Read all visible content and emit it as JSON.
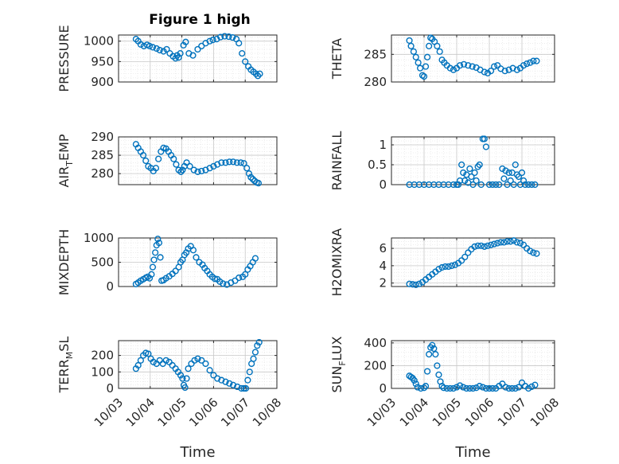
{
  "figure": {
    "title": "Figure 1 high",
    "marker_color": "#0072BD",
    "grid_color": "#c8c8c8",
    "axis_color": "#262626"
  },
  "chart_data": [
    {
      "id": "pressure",
      "type": "scatter",
      "marker": "circle",
      "title": "Figure 1 high",
      "ylabel": {
        "main": "PRESSURE",
        "sub": ""
      },
      "xlabel": "",
      "xlim": [
        0,
        5
      ],
      "xticks": [
        0,
        1,
        2,
        3,
        4,
        5
      ],
      "xticklabels": [],
      "ylim": [
        900,
        1015
      ],
      "yticks": [
        900,
        950,
        1000
      ],
      "yticklabels": [
        "900",
        "950",
        "1000"
      ],
      "grid": true,
      "x": [
        0.55,
        0.62,
        0.7,
        0.8,
        0.9,
        0.98,
        1.08,
        1.2,
        1.3,
        1.42,
        1.52,
        1.62,
        1.72,
        1.8,
        1.85,
        1.9,
        1.95,
        2.05,
        2.12,
        2.22,
        2.35,
        2.5,
        2.62,
        2.75,
        2.88,
        2.98,
        3.1,
        3.22,
        3.35,
        3.48,
        3.6,
        3.72,
        3.8,
        3.9,
        4.0,
        4.1,
        4.18,
        4.26,
        4.34,
        4.4,
        4.46
      ],
      "y": [
        1005,
        1000,
        992,
        988,
        991,
        988,
        985,
        982,
        978,
        975,
        980,
        970,
        963,
        958,
        965,
        960,
        970,
        990,
        998,
        970,
        965,
        980,
        988,
        995,
        1000,
        1003,
        1005,
        1010,
        1012,
        1011,
        1009,
        1005,
        995,
        970,
        950,
        938,
        930,
        925,
        920,
        915,
        920
      ]
    },
    {
      "id": "theta",
      "type": "scatter",
      "marker": "circle",
      "ylabel": {
        "main": "THETA",
        "sub": ""
      },
      "xlabel": "",
      "xlim": [
        0,
        5
      ],
      "xticks": [
        0,
        1,
        2,
        3,
        4,
        5
      ],
      "xticklabels": [],
      "ylim": [
        280,
        288.5
      ],
      "yticks": [
        280,
        285
      ],
      "yticklabels": [
        "280",
        "285"
      ],
      "grid": true,
      "x": [
        0.55,
        0.6,
        0.68,
        0.75,
        0.82,
        0.88,
        0.95,
        1.0,
        1.05,
        1.1,
        1.15,
        1.2,
        1.25,
        1.32,
        1.4,
        1.48,
        1.55,
        1.62,
        1.7,
        1.8,
        1.9,
        2.0,
        2.1,
        2.22,
        2.35,
        2.48,
        2.6,
        2.72,
        2.85,
        2.95,
        3.05,
        3.15,
        3.25,
        3.35,
        3.48,
        3.6,
        3.72,
        3.85,
        3.95,
        4.05,
        4.15,
        4.25,
        4.35,
        4.45
      ],
      "y": [
        287.5,
        286.5,
        285.5,
        284.5,
        283.5,
        282.5,
        281.2,
        281,
        282.8,
        284.5,
        286.5,
        288,
        287.8,
        287.3,
        286.5,
        285.5,
        284,
        283.5,
        283,
        282.5,
        282.2,
        282.5,
        283,
        283.2,
        283,
        282.8,
        282.6,
        282.2,
        281.8,
        281.6,
        282,
        282.8,
        283,
        282.4,
        282,
        282.2,
        282.5,
        282.2,
        282.5,
        283,
        283.3,
        283.5,
        283.8,
        283.8
      ]
    },
    {
      "id": "air_temp",
      "type": "scatter",
      "marker": "circle",
      "ylabel": {
        "main": "AIR",
        "sub": "T",
        "tail": "EMP"
      },
      "xlabel": "",
      "xlim": [
        0,
        5
      ],
      "xticks": [
        0,
        1,
        2,
        3,
        4,
        5
      ],
      "xticklabels": [],
      "ylim": [
        277,
        290
      ],
      "yticks": [
        280,
        285,
        290
      ],
      "yticklabels": [
        "280",
        "285",
        "290"
      ],
      "grid": true,
      "x": [
        0.55,
        0.62,
        0.7,
        0.78,
        0.86,
        0.94,
        1.02,
        1.1,
        1.18,
        1.26,
        1.34,
        1.42,
        1.5,
        1.58,
        1.66,
        1.74,
        1.82,
        1.9,
        1.97,
        2.02,
        2.08,
        2.15,
        2.25,
        2.38,
        2.5,
        2.62,
        2.75,
        2.88,
        3.0,
        3.12,
        3.25,
        3.38,
        3.5,
        3.62,
        3.74,
        3.86,
        3.96,
        4.05,
        4.12,
        4.18,
        4.24,
        4.3,
        4.36,
        4.42
      ],
      "y": [
        288,
        287,
        286,
        285,
        283.5,
        282,
        281.5,
        280.7,
        281.5,
        284,
        286,
        287,
        286.8,
        286,
        285,
        284,
        282.5,
        281,
        280.5,
        281,
        282,
        283,
        282,
        281,
        280.5,
        280.7,
        281,
        281.5,
        282,
        282.5,
        283,
        283,
        283.2,
        283.2,
        283,
        283,
        282.8,
        281.5,
        280,
        279,
        278.5,
        278,
        277.6,
        277.4
      ]
    },
    {
      "id": "rainfall",
      "type": "scatter",
      "marker": "circle",
      "ylabel": {
        "main": "RAINFALL",
        "sub": ""
      },
      "xlabel": "",
      "xlim": [
        0,
        5
      ],
      "xticks": [
        0,
        1,
        2,
        3,
        4,
        5
      ],
      "xticklabels": [],
      "ylim": [
        0,
        1.2
      ],
      "yticks": [
        0,
        0.5,
        1
      ],
      "yticklabels": [
        "0",
        "0.5",
        "1"
      ],
      "grid": true,
      "x": [
        0.55,
        0.7,
        0.85,
        1.0,
        1.15,
        1.3,
        1.45,
        1.6,
        1.75,
        1.9,
        2.0,
        2.05,
        2.1,
        2.15,
        2.2,
        2.25,
        2.3,
        2.35,
        2.4,
        2.45,
        2.5,
        2.55,
        2.6,
        2.65,
        2.7,
        2.75,
        2.8,
        2.85,
        2.9,
        3.0,
        3.1,
        3.2,
        3.3,
        3.4,
        3.45,
        3.5,
        3.55,
        3.6,
        3.65,
        3.7,
        3.75,
        3.8,
        3.85,
        3.9,
        3.95,
        4.0,
        4.05,
        4.1,
        4.2,
        4.3,
        4.4
      ],
      "y": [
        0,
        0,
        0,
        0,
        0,
        0,
        0,
        0,
        0,
        0,
        0,
        0,
        0.1,
        0.5,
        0.3,
        0.1,
        0.25,
        0.05,
        0.4,
        0.2,
        0,
        0.3,
        0.1,
        0.45,
        0.5,
        0,
        1.15,
        1.15,
        0.95,
        0,
        0,
        0,
        0,
        0.4,
        0.15,
        0.35,
        0,
        0.3,
        0.1,
        0.3,
        0,
        0.5,
        0.25,
        0.2,
        0,
        0.3,
        0.1,
        0,
        0,
        0,
        0
      ]
    },
    {
      "id": "mixdepth",
      "type": "scatter",
      "marker": "circle",
      "ylabel": {
        "main": "MIXDEPTH",
        "sub": ""
      },
      "xlabel": "",
      "xlim": [
        0,
        5
      ],
      "xticks": [
        0,
        1,
        2,
        3,
        4,
        5
      ],
      "xticklabels": [],
      "ylim": [
        0,
        1000
      ],
      "yticks": [
        0,
        500,
        1000
      ],
      "yticklabels": [
        "0",
        "500",
        "1000"
      ],
      "grid": true,
      "x": [
        0.55,
        0.62,
        0.7,
        0.78,
        0.86,
        0.92,
        0.98,
        1.04,
        1.08,
        1.12,
        1.16,
        1.2,
        1.24,
        1.28,
        1.32,
        1.36,
        1.42,
        1.5,
        1.6,
        1.7,
        1.8,
        1.9,
        1.96,
        2.02,
        2.08,
        2.14,
        2.2,
        2.28,
        2.36,
        2.45,
        2.55,
        2.65,
        2.72,
        2.8,
        2.88,
        2.96,
        3.04,
        3.12,
        3.2,
        3.3,
        3.42,
        3.55,
        3.68,
        3.8,
        3.92,
        4.0,
        4.08,
        4.16,
        4.24,
        4.32
      ],
      "y": [
        50,
        80,
        120,
        150,
        180,
        200,
        170,
        250,
        400,
        550,
        700,
        850,
        980,
        900,
        600,
        120,
        130,
        170,
        210,
        260,
        320,
        400,
        500,
        550,
        650,
        700,
        780,
        830,
        750,
        600,
        500,
        450,
        380,
        320,
        250,
        200,
        160,
        150,
        100,
        60,
        40,
        80,
        120,
        180,
        200,
        250,
        350,
        420,
        500,
        580
      ]
    },
    {
      "id": "h2omixra",
      "type": "scatter",
      "marker": "circle",
      "ylabel": {
        "main": "H2OMIXRA",
        "sub": ""
      },
      "xlabel": "",
      "xlim": [
        0,
        5
      ],
      "xticks": [
        0,
        1,
        2,
        3,
        4,
        5
      ],
      "xticklabels": [],
      "ylim": [
        1.6,
        7.2
      ],
      "yticks": [
        2,
        4,
        6
      ],
      "yticklabels": [
        "2",
        "4",
        "6"
      ],
      "grid": true,
      "x": [
        0.55,
        0.65,
        0.75,
        0.85,
        0.95,
        1.05,
        1.15,
        1.25,
        1.35,
        1.45,
        1.55,
        1.65,
        1.75,
        1.85,
        1.95,
        2.05,
        2.15,
        2.25,
        2.35,
        2.45,
        2.55,
        2.65,
        2.75,
        2.85,
        2.95,
        3.05,
        3.15,
        3.25,
        3.35,
        3.45,
        3.55,
        3.65,
        3.75,
        3.85,
        3.95,
        4.05,
        4.15,
        4.25,
        4.35,
        4.45
      ],
      "y": [
        1.9,
        1.85,
        1.8,
        1.9,
        2.1,
        2.4,
        2.7,
        3.0,
        3.3,
        3.6,
        3.8,
        3.9,
        3.9,
        4.0,
        4.1,
        4.3,
        4.6,
        5.0,
        5.5,
        5.9,
        6.2,
        6.3,
        6.3,
        6.2,
        6.3,
        6.4,
        6.5,
        6.6,
        6.7,
        6.7,
        6.8,
        6.8,
        6.9,
        6.7,
        6.6,
        6.4,
        6.0,
        5.7,
        5.5,
        5.4
      ]
    },
    {
      "id": "terr_msl",
      "type": "scatter",
      "marker": "circle",
      "ylabel": {
        "main": "TERR",
        "sub": "M",
        "tail": "SL"
      },
      "xlabel": "Time",
      "xlim": [
        0,
        5
      ],
      "xticks": [
        0,
        1,
        2,
        3,
        4,
        5
      ],
      "xticklabels": [
        "10/03",
        "10/04",
        "10/05",
        "10/06",
        "10/07",
        "10/08"
      ],
      "ylim": [
        0,
        290
      ],
      "yticks": [
        0,
        100,
        200
      ],
      "yticklabels": [
        "0",
        "100",
        "200"
      ],
      "grid": true,
      "x": [
        0.55,
        0.62,
        0.7,
        0.78,
        0.86,
        0.94,
        1.02,
        1.1,
        1.2,
        1.3,
        1.4,
        1.5,
        1.6,
        1.7,
        1.8,
        1.88,
        1.96,
        2.02,
        2.06,
        2.1,
        2.15,
        2.2,
        2.3,
        2.4,
        2.5,
        2.62,
        2.75,
        2.88,
        3.0,
        3.12,
        3.25,
        3.38,
        3.5,
        3.62,
        3.75,
        3.88,
        3.96,
        4.02,
        4.08,
        4.14,
        4.2,
        4.26,
        4.32,
        4.38,
        4.44
      ],
      "y": [
        120,
        140,
        170,
        200,
        215,
        210,
        180,
        160,
        150,
        170,
        150,
        170,
        160,
        140,
        120,
        100,
        80,
        60,
        20,
        5,
        60,
        120,
        150,
        170,
        180,
        170,
        150,
        110,
        80,
        60,
        50,
        40,
        30,
        20,
        10,
        0,
        0,
        0,
        50,
        100,
        150,
        180,
        220,
        260,
        280
      ]
    },
    {
      "id": "sun_flux",
      "type": "scatter",
      "marker": "circle",
      "ylabel": {
        "main": "SUN",
        "sub": "F",
        "tail": "LUX"
      },
      "xlabel": "Time",
      "xlim": [
        0,
        5
      ],
      "xticks": [
        0,
        1,
        2,
        3,
        4,
        5
      ],
      "xticklabels": [
        "10/03",
        "10/04",
        "10/05",
        "10/06",
        "10/07",
        "10/08"
      ],
      "ylim": [
        0,
        420
      ],
      "yticks": [
        0,
        200,
        400
      ],
      "yticklabels": [
        "0",
        "200",
        "400"
      ],
      "grid": true,
      "x": [
        0.55,
        0.6,
        0.65,
        0.7,
        0.75,
        0.8,
        0.9,
        1.0,
        1.05,
        1.1,
        1.15,
        1.2,
        1.25,
        1.3,
        1.35,
        1.4,
        1.45,
        1.5,
        1.55,
        1.6,
        1.7,
        1.8,
        1.9,
        2.0,
        2.1,
        2.2,
        2.3,
        2.4,
        2.5,
        2.6,
        2.7,
        2.8,
        2.9,
        3.0,
        3.1,
        3.2,
        3.3,
        3.4,
        3.5,
        3.6,
        3.7,
        3.8,
        3.9,
        4.0,
        4.1,
        4.2,
        4.3,
        4.4
      ],
      "y": [
        110,
        100,
        90,
        70,
        40,
        10,
        0,
        5,
        20,
        150,
        300,
        360,
        380,
        350,
        300,
        200,
        120,
        60,
        20,
        5,
        0,
        0,
        0,
        10,
        25,
        10,
        0,
        0,
        0,
        5,
        20,
        10,
        0,
        0,
        0,
        0,
        20,
        40,
        10,
        0,
        0,
        0,
        10,
        50,
        20,
        0,
        15,
        30
      ]
    }
  ]
}
